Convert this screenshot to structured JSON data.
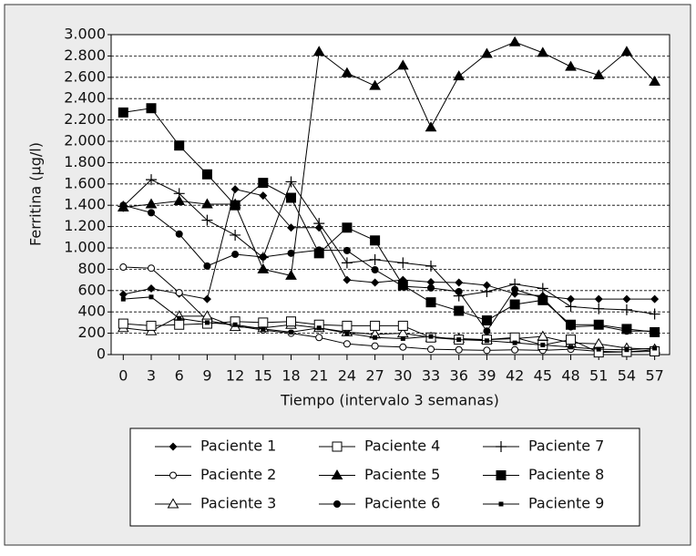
{
  "chart_data": {
    "type": "line",
    "ylabel": "Ferritina (µg/l)",
    "xlabel": "Tiempo (intervalo 3 semanas)",
    "x": [
      0,
      3,
      6,
      9,
      12,
      15,
      18,
      21,
      24,
      27,
      30,
      33,
      36,
      39,
      42,
      45,
      48,
      51,
      54,
      57
    ],
    "xlim": [
      -1.3,
      58.6
    ],
    "xticks": [
      0,
      3,
      6,
      9,
      12,
      15,
      18,
      21,
      24,
      27,
      30,
      33,
      36,
      39,
      42,
      45,
      48,
      51,
      54,
      57
    ],
    "ylim": [
      0,
      3000
    ],
    "yticks": [
      0,
      200,
      400,
      600,
      800,
      {
        "value": 1000,
        "label": "1.000"
      },
      {
        "value": 1200,
        "label": "1.200"
      },
      {
        "value": 1400,
        "label": "1.400"
      },
      {
        "value": 1600,
        "label": "1.600"
      },
      {
        "value": 1800,
        "label": "1.800"
      },
      {
        "value": 2000,
        "label": "2.000"
      },
      {
        "value": 2200,
        "label": "2.200"
      },
      {
        "value": 2400,
        "label": "2.400"
      },
      {
        "value": 2600,
        "label": "2.600"
      },
      {
        "value": 2800,
        "label": "2.800"
      },
      {
        "value": 3000,
        "label": "3.000"
      }
    ],
    "grid": true,
    "series": [
      {
        "name": "Paciente 1",
        "color": "#000000",
        "marker": "diamond",
        "values": [
          564,
          620,
          570,
          520,
          1550,
          1490,
          1190,
          1190,
          700,
          675,
          700,
          680,
          675,
          650,
          570,
          550,
          520,
          520,
          520,
          520
        ]
      },
      {
        "name": "Paciente 2",
        "color": "#000000",
        "marker": "circle-open",
        "values": [
          820,
          810,
          580,
          320,
          270,
          230,
          200,
          160,
          100,
          80,
          70,
          50,
          45,
          40,
          45,
          40,
          50,
          30,
          25,
          45
        ]
      },
      {
        "name": "Paciente 3",
        "color": "#000000",
        "marker": "triangle-open",
        "values": [
          250,
          220,
          360,
          360,
          260,
          250,
          280,
          250,
          210,
          190,
          200,
          160,
          150,
          140,
          150,
          170,
          110,
          100,
          60,
          50
        ]
      },
      {
        "name": "Paciente 4",
        "color": "#000000",
        "marker": "square-open",
        "values": [
          290,
          270,
          280,
          290,
          310,
          300,
          310,
          280,
          270,
          270,
          270,
          160,
          140,
          140,
          160,
          90,
          140,
          20,
          25,
          30
        ]
      },
      {
        "name": "Paciente 5",
        "color": "#000000",
        "marker": "triangle",
        "values": [
          1380,
          1410,
          1440,
          1410,
          1410,
          800,
          740,
          2840,
          2640,
          2520,
          2710,
          2130,
          2610,
          2820,
          2930,
          2830,
          2700,
          2620,
          2840,
          2560
        ]
      },
      {
        "name": "Paciente 6",
        "color": "#000000",
        "marker": "circle",
        "values": [
          1400,
          1330,
          1130,
          830,
          940,
          915,
          950,
          980,
          975,
          795,
          640,
          625,
          590,
          220,
          610,
          530,
          260,
          270,
          220,
          220
        ]
      },
      {
        "name": "Paciente 7",
        "color": "#000000",
        "marker": "plus",
        "values": [
          1390,
          1640,
          1510,
          1260,
          1120,
          910,
          1620,
          1230,
          860,
          890,
          860,
          830,
          550,
          590,
          660,
          620,
          450,
          430,
          420,
          380
        ]
      },
      {
        "name": "Paciente 8",
        "color": "#000000",
        "marker": "square",
        "values": [
          2270,
          2310,
          1960,
          1690,
          1400,
          1610,
          1470,
          950,
          1190,
          1070,
          650,
          490,
          410,
          320,
          470,
          510,
          280,
          280,
          240,
          210
        ]
      },
      {
        "name": "Paciente 9",
        "color": "#000000",
        "marker": "square-small",
        "values": [
          520,
          540,
          340,
          300,
          280,
          240,
          210,
          250,
          200,
          160,
          150,
          170,
          140,
          130,
          110,
          90,
          70,
          50,
          45,
          60
        ]
      }
    ]
  }
}
